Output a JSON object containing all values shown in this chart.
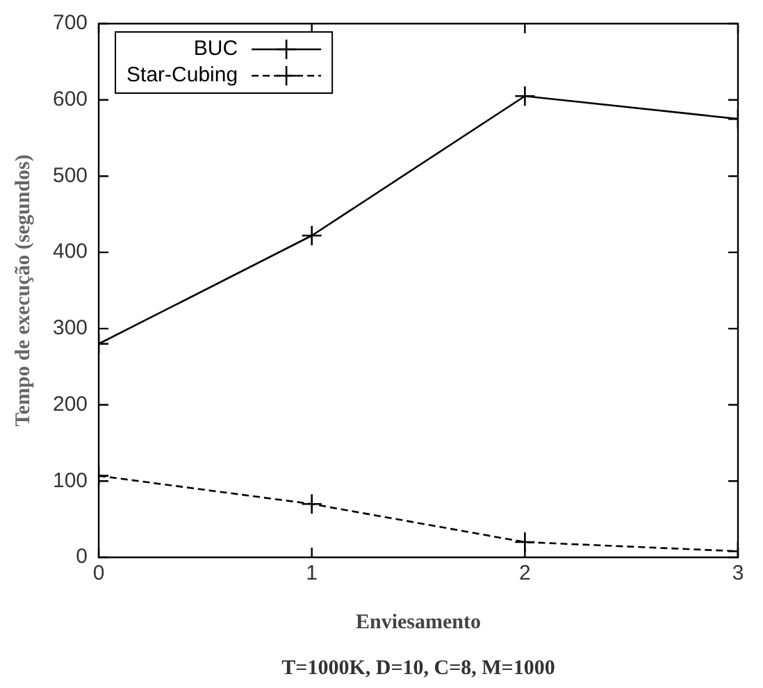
{
  "chart_data": {
    "type": "line",
    "xlabel": "Enviesamento",
    "ylabel": "Tempo de execução (segundos)",
    "annotations": [
      "T=1000K, D=10, C=8, M=1000"
    ],
    "x": [
      0,
      1,
      2,
      3
    ],
    "series": [
      {
        "name": "BUC",
        "color": "#000000",
        "values": [
          280,
          422,
          605,
          575
        ],
        "marker": "cross",
        "line_style": "solid"
      },
      {
        "name": "Star-Cubing",
        "color": "#000000",
        "values": [
          107,
          70,
          20,
          8
        ],
        "marker": "cross",
        "line_style": "dashed"
      }
    ],
    "xlim": [
      0,
      3
    ],
    "xticks": [
      0,
      1,
      2,
      3
    ],
    "ylim": [
      0,
      700
    ],
    "yticks": [
      0,
      100,
      200,
      300,
      400,
      500,
      600,
      700
    ],
    "grid": false,
    "legend": "top left"
  }
}
